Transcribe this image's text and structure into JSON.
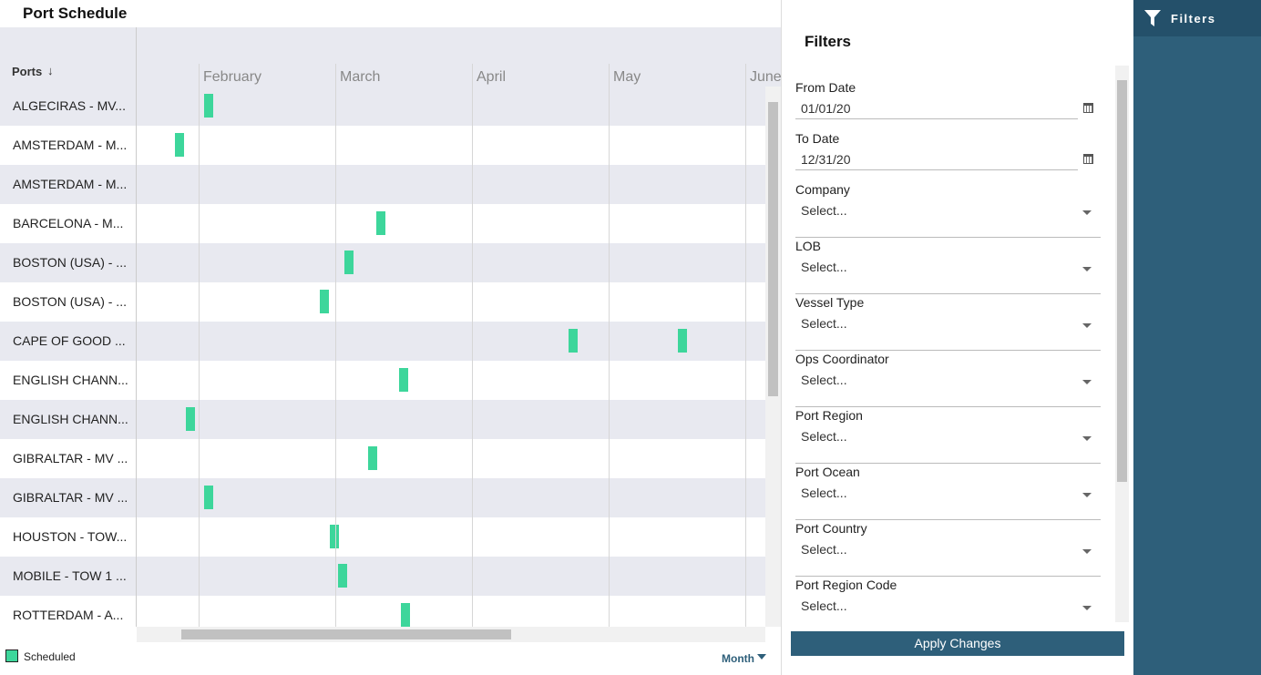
{
  "header": {
    "title": "Port Schedule"
  },
  "schedule": {
    "column_header": "Ports",
    "xlim": [
      1.54,
      6.14
    ],
    "xticks": [
      {
        "value": 2,
        "label": "February"
      },
      {
        "value": 3,
        "label": "March"
      },
      {
        "value": 4,
        "label": "April"
      },
      {
        "value": 5,
        "label": "May"
      },
      {
        "value": 6,
        "label": "June"
      }
    ],
    "color": "#3dd69b",
    "rows": [
      {
        "label": "ALGECIRAS - MV...",
        "starts": [
          2.03
        ]
      },
      {
        "label": "AMSTERDAM - M...",
        "starts": [
          1.82
        ]
      },
      {
        "label": "AMSTERDAM - M...",
        "starts": []
      },
      {
        "label": "BARCELONA - M...",
        "starts": [
          3.29
        ]
      },
      {
        "label": "BOSTON (USA) - ...",
        "starts": [
          3.06
        ]
      },
      {
        "label": "BOSTON (USA) - ...",
        "starts": [
          2.88
        ]
      },
      {
        "label": "CAPE OF GOOD ...",
        "starts": [
          4.7,
          5.5
        ]
      },
      {
        "label": "ENGLISH CHANN...",
        "starts": [
          3.46
        ]
      },
      {
        "label": "ENGLISH CHANN...",
        "starts": [
          1.9
        ]
      },
      {
        "label": "GIBRALTAR - MV ...",
        "starts": [
          3.23
        ]
      },
      {
        "label": "GIBRALTAR - MV ...",
        "starts": [
          2.03
        ]
      },
      {
        "label": "HOUSTON - TOW...",
        "starts": [
          2.95
        ]
      },
      {
        "label": "MOBILE - TOW 1 ...",
        "starts": [
          3.01
        ]
      },
      {
        "label": "ROTTERDAM - A...",
        "starts": [
          3.47
        ]
      }
    ],
    "legend": "Scheduled",
    "view_mode": "Month"
  },
  "filters": {
    "title": "Filters",
    "fields": [
      {
        "label": "From Date",
        "value": "01/01/20",
        "kind": "date"
      },
      {
        "label": "To Date",
        "value": "12/31/20",
        "kind": "date"
      },
      {
        "label": "Company",
        "value": "Select...",
        "kind": "select"
      },
      {
        "label": "LOB",
        "value": "Select...",
        "kind": "select"
      },
      {
        "label": "Vessel Type",
        "value": "Select...",
        "kind": "select"
      },
      {
        "label": "Ops Coordinator",
        "value": "Select...",
        "kind": "select"
      },
      {
        "label": "Port Region",
        "value": "Select...",
        "kind": "select"
      },
      {
        "label": "Port Ocean",
        "value": "Select...",
        "kind": "select"
      },
      {
        "label": "Port Country",
        "value": "Select...",
        "kind": "select"
      },
      {
        "label": "Port Region Code",
        "value": "Select...",
        "kind": "select"
      }
    ],
    "apply_button": "Apply Changes"
  },
  "sidebar": {
    "tab": "Filters"
  }
}
